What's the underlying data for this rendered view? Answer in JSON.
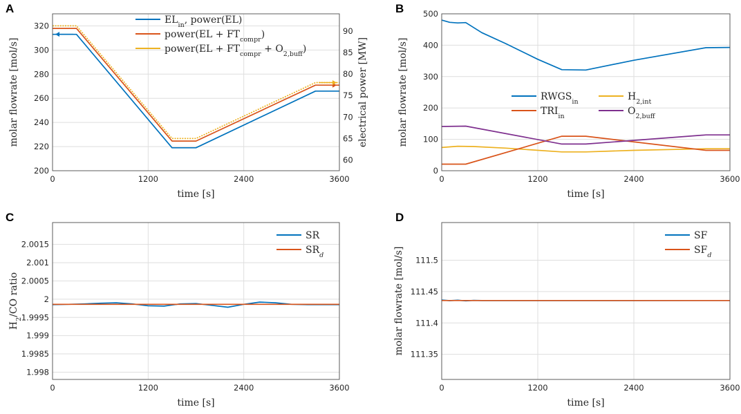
{
  "colors": {
    "blue": "#0072bd",
    "red": "#d95319",
    "yellow": "#edb120",
    "purple": "#7e2f8e"
  },
  "chart_data": [
    {
      "panel": "A",
      "type": "line",
      "xlabel": "time [s]",
      "ylabel": "molar flowrate [mol/s]",
      "y2label": "electrical power [MW]",
      "xlim": [
        0,
        3600
      ],
      "xticks": [
        0,
        1200,
        2400,
        3600
      ],
      "ylim": [
        200,
        330
      ],
      "yticks": [
        200,
        220,
        240,
        260,
        280,
        300,
        320
      ],
      "y2lim": [
        57.5,
        94
      ],
      "y2ticks": [
        60,
        65,
        70,
        75,
        80,
        85,
        90
      ],
      "grid": true,
      "legend": "top-right",
      "series": [
        {
          "name": "EL_in, power(EL)",
          "legend": [
            [
              "EL"
            ],
            [
              "in",
              "sub"
            ],
            [
              ", power(EL)"
            ]
          ],
          "color": "blue",
          "axis": "left",
          "x": [
            0,
            300,
            1500,
            1800,
            3300,
            3600
          ],
          "y": [
            313,
            313,
            219,
            219,
            266,
            266
          ]
        },
        {
          "name": "power(EL + FT_compr)",
          "legend": [
            [
              "power(EL + FT"
            ],
            [
              "compr",
              "sub"
            ],
            [
              ")"
            ]
          ],
          "color": "red",
          "axis": "right",
          "x": [
            0,
            300,
            1500,
            1800,
            3300,
            3600
          ],
          "y": [
            90.6,
            90.6,
            64.4,
            64.4,
            77.4,
            77.4
          ]
        },
        {
          "name": "power(EL + FT_compr + O2,buff)",
          "legend": [
            [
              "power(EL + FT"
            ],
            [
              "compr",
              "sub"
            ],
            [
              " + O"
            ],
            [
              "2,buff",
              "sub"
            ],
            [
              ")"
            ]
          ],
          "color": "yellow",
          "axis": "right",
          "x": [
            0,
            300,
            1500,
            1800,
            3300,
            3600
          ],
          "y": [
            91.2,
            91.2,
            65,
            65,
            78,
            78
          ]
        }
      ]
    },
    {
      "panel": "B",
      "type": "line",
      "xlabel": "time [s]",
      "ylabel": "molar flowrate [mol/s]",
      "xlim": [
        0,
        3600
      ],
      "xticks": [
        0,
        1200,
        2400,
        3600
      ],
      "ylim": [
        0,
        500
      ],
      "yticks": [
        0,
        100,
        200,
        300,
        400,
        500
      ],
      "grid": true,
      "legend": "center-right",
      "series": [
        {
          "name": "RWGS_in",
          "legend": [
            [
              "RWGS"
            ],
            [
              "in",
              "sub"
            ]
          ],
          "color": "blue",
          "x": [
            0,
            100,
            200,
            300,
            500,
            800,
            1200,
            1500,
            1800,
            2400,
            3300,
            3600
          ],
          "y": [
            480,
            473,
            471,
            472,
            440,
            405,
            355,
            322,
            321,
            352,
            392,
            393
          ]
        },
        {
          "name": "H2,int",
          "legend": [
            [
              "H"
            ],
            [
              "2,int",
              "sub"
            ]
          ],
          "color": "yellow",
          "x": [
            0,
            200,
            400,
            800,
            1500,
            1800,
            2400,
            3300,
            3600
          ],
          "y": [
            74,
            78,
            77,
            72,
            60,
            60,
            65,
            70,
            70
          ]
        },
        {
          "name": "TRI_in",
          "legend": [
            [
              "TRI"
            ],
            [
              "in",
              "sub"
            ]
          ],
          "color": "red",
          "x": [
            0,
            300,
            1500,
            1800,
            3300,
            3600
          ],
          "y": [
            21,
            21,
            110,
            110,
            65,
            65
          ]
        },
        {
          "name": "O2,buff",
          "legend": [
            [
              "O"
            ],
            [
              "2,buff",
              "sub"
            ]
          ],
          "color": "purple",
          "x": [
            0,
            300,
            1500,
            1800,
            3300,
            3600
          ],
          "y": [
            141,
            142,
            85,
            85,
            114,
            114
          ]
        }
      ]
    },
    {
      "panel": "C",
      "type": "line",
      "xlabel": "time [s]",
      "ylabel": "H2/CO ratio",
      "ylabel_parts": [
        [
          "H"
        ],
        [
          "2",
          "sub"
        ],
        [
          "/CO ratio"
        ]
      ],
      "xlim": [
        0,
        3600
      ],
      "xticks": [
        0,
        1200,
        2400,
        3600
      ],
      "ylim": [
        1.9978,
        2.0021
      ],
      "yticks": [
        1.998,
        1.9985,
        1.999,
        1.9995,
        2,
        2.0005,
        2.001,
        2.0015
      ],
      "ytick_labels": [
        "1.998",
        "1.9985",
        "1.999",
        "1.9995",
        "2",
        "2.0005",
        "2.001",
        "2.0015"
      ],
      "grid": true,
      "legend": "top-right",
      "series": [
        {
          "name": "SR",
          "legend": [
            [
              "SR"
            ]
          ],
          "color": "blue",
          "x": [
            0,
            200,
            400,
            600,
            800,
            1000,
            1200,
            1400,
            1600,
            1800,
            2000,
            2200,
            2400,
            2600,
            2800,
            3000,
            3200,
            3400,
            3600
          ],
          "y": [
            1.99985,
            1.99986,
            1.99987,
            1.99989,
            1.9999,
            1.99987,
            1.99982,
            1.99981,
            1.99987,
            1.99988,
            1.99983,
            1.99978,
            1.99986,
            1.99992,
            1.9999,
            1.99986,
            1.99985,
            1.99985,
            1.99985
          ]
        },
        {
          "name": "SR_d",
          "legend": [
            [
              "SR"
            ],
            [
              "d",
              "subi"
            ]
          ],
          "color": "red",
          "x": [
            0,
            3600
          ],
          "y": [
            1.99986,
            1.99986
          ]
        }
      ]
    },
    {
      "panel": "D",
      "type": "line",
      "xlabel": "time [s]",
      "ylabel": "molar flowrate [mol/s]",
      "xlim": [
        0,
        3600
      ],
      "xticks": [
        0,
        1200,
        2400,
        3600
      ],
      "ylim": [
        111.31,
        111.56
      ],
      "yticks": [
        111.35,
        111.4,
        111.45,
        111.5
      ],
      "ytick_labels": [
        "111.35",
        "111.4",
        "111.45",
        "111.5"
      ],
      "grid": true,
      "legend": "top-right",
      "series": [
        {
          "name": "SF",
          "legend": [
            [
              "SF"
            ]
          ],
          "color": "blue",
          "x": [
            0,
            100,
            200,
            300,
            400,
            500,
            3600
          ],
          "y": [
            111.4365,
            111.4355,
            111.4362,
            111.4352,
            111.436,
            111.4357,
            111.4358
          ]
        },
        {
          "name": "SF_d",
          "legend": [
            [
              "SF"
            ],
            [
              "d",
              "subi"
            ]
          ],
          "color": "red",
          "x": [
            0,
            3600
          ],
          "y": [
            111.4358,
            111.4358
          ]
        }
      ]
    }
  ]
}
